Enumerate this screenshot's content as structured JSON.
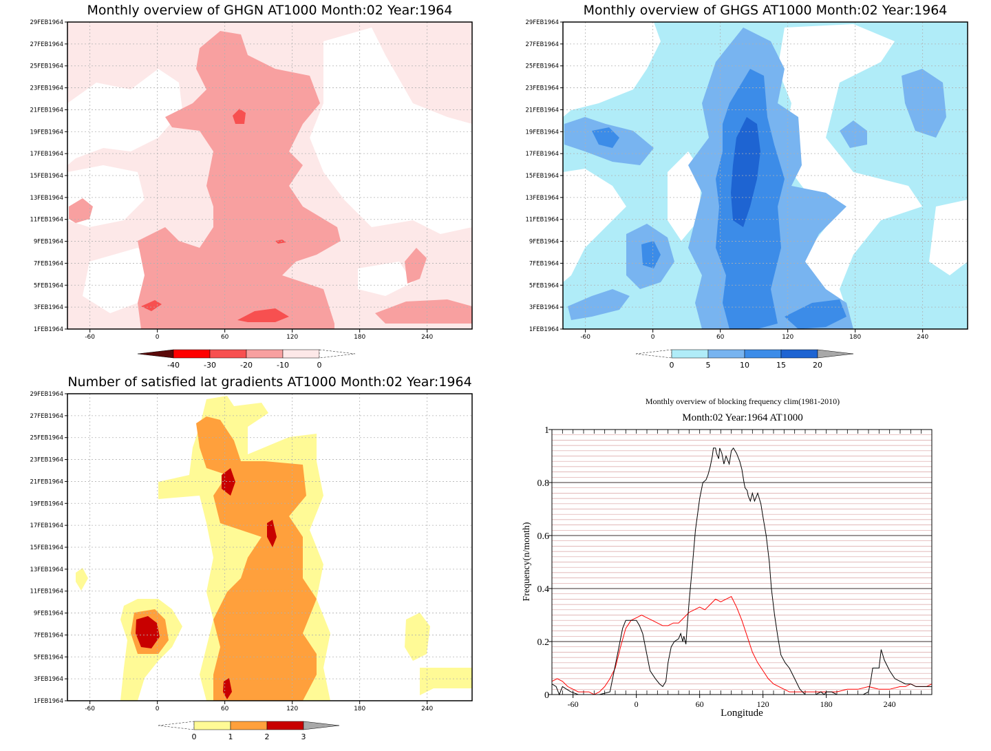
{
  "chart_data": [
    {
      "type": "heatmap",
      "title": "Monthly overview of GHGN AT1000 Month:02 Year:1964",
      "x_ticks": [
        "-60",
        "0",
        "60",
        "120",
        "180",
        "240"
      ],
      "x_tick_values": [
        -60,
        0,
        60,
        120,
        180,
        240
      ],
      "xlim": [
        -80,
        280
      ],
      "y_ticks": [
        "1FEB1964",
        "3FEB1964",
        "5FEB1964",
        "7FEB1964",
        "9FEB1964",
        "11FEB1964",
        "13FEB1964",
        "15FEB1964",
        "17FEB1964",
        "19FEB1964",
        "21FEB1964",
        "23FEB1964",
        "25FEB1964",
        "27FEB1964",
        "29FEB1964"
      ],
      "ylim": [
        1,
        29
      ],
      "colorbar": {
        "labels": [
          "-40",
          "-30",
          "-20",
          "-10",
          "0"
        ],
        "colors": [
          "#5a0a0a",
          "#ff0000",
          "#f75050",
          "#f8a0a0",
          "#fde8e8",
          "#ffffff"
        ]
      },
      "regions": [
        {
          "level": "0 to -10",
          "color": "#fde8e8",
          "lon": [
            -80,
            280
          ],
          "days": [
            1,
            29
          ]
        },
        {
          "level": "-10 to -20",
          "color": "#f8a0a0",
          "lon": [
            40,
            165
          ],
          "days": [
            1,
            29
          ]
        },
        {
          "level": "-20 to -30",
          "color": "#f75050",
          "lon": [
            70,
            120
          ],
          "days": [
            1,
            3
          ]
        }
      ]
    },
    {
      "type": "heatmap",
      "title": "Monthly overview of GHGS AT1000 Month:02 Year:1964",
      "x_ticks": [
        "-60",
        "0",
        "60",
        "120",
        "180",
        "240"
      ],
      "x_tick_values": [
        -60,
        0,
        60,
        120,
        180,
        240
      ],
      "xlim": [
        -80,
        280
      ],
      "y_ticks": [
        "1FEB1964",
        "3FEB1964",
        "5FEB1964",
        "7FEB1964",
        "9FEB1964",
        "11FEB1964",
        "13FEB1964",
        "15FEB1964",
        "17FEB1964",
        "19FEB1964",
        "21FEB1964",
        "23FEB1964",
        "25FEB1964",
        "27FEB1964",
        "29FEB1964"
      ],
      "ylim": [
        1,
        29
      ],
      "colorbar": {
        "labels": [
          "0",
          "5",
          "10",
          "15",
          "20"
        ],
        "colors": [
          "#ffffff",
          "#b0ecf8",
          "#78b4f0",
          "#3c8ce8",
          "#1e64d2",
          "#a8a8a8"
        ]
      },
      "regions": [
        {
          "level": "0 to 5",
          "color": "#b0ecf8",
          "lon": [
            -80,
            280
          ],
          "days": [
            1,
            29
          ]
        },
        {
          "level": "5 to 10",
          "color": "#78b4f0",
          "lon": [
            40,
            150
          ],
          "days": [
            1,
            27
          ]
        },
        {
          "level": "10 to 15",
          "color": "#3c8ce8",
          "lon": [
            60,
            120
          ],
          "days": [
            2,
            23
          ]
        }
      ]
    },
    {
      "type": "heatmap",
      "title": "Number of satisfied lat gradients AT1000 Month:02 Year:1964",
      "x_ticks": [
        "-60",
        "0",
        "60",
        "120",
        "180",
        "240"
      ],
      "x_tick_values": [
        -60,
        0,
        60,
        120,
        180,
        240
      ],
      "xlim": [
        -80,
        280
      ],
      "y_ticks": [
        "1FEB1964",
        "3FEB1964",
        "5FEB1964",
        "7FEB1964",
        "9FEB1964",
        "11FEB1964",
        "13FEB1964",
        "15FEB1964",
        "17FEB1964",
        "19FEB1964",
        "21FEB1964",
        "23FEB1964",
        "25FEB1964",
        "27FEB1964",
        "29FEB1964"
      ],
      "ylim": [
        1,
        29
      ],
      "colorbar": {
        "labels": [
          "0",
          "1",
          "2",
          "3"
        ],
        "colors": [
          "#ffffff",
          "#fffa96",
          "#ffa03c",
          "#c80000",
          "#a8a8a8"
        ]
      },
      "regions": [
        {
          "level": "1",
          "color": "#fffa96",
          "lon": [
            30,
            150
          ],
          "days": [
            1,
            29
          ]
        },
        {
          "level": "2",
          "color": "#ffa03c",
          "lon": [
            50,
            140
          ],
          "days": [
            1,
            27
          ]
        },
        {
          "level": "3",
          "color": "#c80000",
          "lon": [
            -20,
            0
          ],
          "days": [
            6,
            9
          ]
        }
      ]
    },
    {
      "type": "line",
      "title": "Monthly overview of blocking frequency clim(1981-2010)",
      "subtitle": "Month:02 Year:1964  AT1000",
      "xlabel": "Longitude",
      "ylabel": "Frequency(n/month)",
      "xlim": [
        -80,
        280
      ],
      "ylim": [
        0,
        1
      ],
      "x_ticks": [
        "-60",
        "0",
        "60",
        "120",
        "180",
        "240"
      ],
      "x_tick_values": [
        -60,
        0,
        60,
        120,
        180,
        240
      ],
      "y_ticks": [
        "0",
        "0.2",
        "0.4",
        "0.6",
        "0.8",
        "1"
      ],
      "y_tick_values": [
        0,
        0.2,
        0.4,
        0.6,
        0.8,
        1
      ],
      "series": [
        {
          "color": "#000000",
          "x": [
            -80,
            -76,
            -73,
            -70,
            -66,
            -62,
            -55,
            -45,
            -35,
            -25,
            -18,
            -13,
            -10,
            -6,
            -3,
            0,
            3,
            6,
            9,
            13,
            18,
            22,
            25,
            28,
            30,
            33,
            36,
            40,
            42,
            44,
            45,
            47,
            48,
            50,
            53,
            56,
            60,
            63,
            66,
            68,
            70,
            72,
            73,
            75,
            76,
            78,
            79,
            81,
            83,
            85,
            88,
            90,
            92,
            95,
            98,
            100,
            102,
            103,
            105,
            106,
            108,
            110,
            112,
            115,
            118,
            120,
            123,
            126,
            128,
            131,
            134,
            137,
            141,
            145,
            150,
            155,
            160,
            166,
            170,
            175,
            178,
            180,
            185,
            190,
            200,
            210,
            215,
            220,
            222,
            224,
            226,
            230,
            232,
            235,
            240,
            245,
            250,
            255,
            260,
            265,
            270,
            275,
            280
          ],
          "y": [
            0.04,
            0.03,
            0.0,
            0.03,
            0.02,
            0.01,
            0.0,
            0.0,
            0.0,
            0.01,
            0.15,
            0.25,
            0.28,
            0.28,
            0.28,
            0.28,
            0.26,
            0.23,
            0.17,
            0.09,
            0.06,
            0.04,
            0.03,
            0.05,
            0.12,
            0.18,
            0.2,
            0.21,
            0.23,
            0.2,
            0.22,
            0.19,
            0.25,
            0.35,
            0.48,
            0.62,
            0.74,
            0.8,
            0.81,
            0.83,
            0.86,
            0.9,
            0.93,
            0.93,
            0.91,
            0.89,
            0.93,
            0.91,
            0.87,
            0.9,
            0.87,
            0.92,
            0.93,
            0.91,
            0.88,
            0.85,
            0.8,
            0.78,
            0.77,
            0.75,
            0.73,
            0.76,
            0.73,
            0.76,
            0.72,
            0.67,
            0.6,
            0.5,
            0.4,
            0.3,
            0.22,
            0.15,
            0.12,
            0.1,
            0.06,
            0.02,
            0.0,
            0.0,
            0.0,
            0.01,
            0.0,
            0.01,
            0.01,
            0.0,
            0.0,
            0.0,
            0.0,
            0.01,
            0.05,
            0.1,
            0.1,
            0.1,
            0.17,
            0.13,
            0.09,
            0.06,
            0.05,
            0.04,
            0.04,
            0.03,
            0.03,
            0.03,
            0.03
          ]
        },
        {
          "color": "#ff0000",
          "x": [
            -80,
            -75,
            -70,
            -65,
            -60,
            -55,
            -45,
            -40,
            -35,
            -30,
            -25,
            -20,
            -15,
            -10,
            -5,
            0,
            5,
            10,
            15,
            20,
            25,
            30,
            35,
            40,
            45,
            50,
            55,
            60,
            65,
            70,
            75,
            80,
            85,
            90,
            95,
            100,
            105,
            110,
            115,
            120,
            125,
            130,
            135,
            140,
            145,
            150,
            155,
            160,
            170,
            180,
            190,
            200,
            210,
            220,
            230,
            240,
            250,
            255,
            260,
            265,
            270,
            275,
            280
          ],
          "y": [
            0.05,
            0.06,
            0.05,
            0.03,
            0.02,
            0.01,
            0.01,
            0.0,
            0.01,
            0.03,
            0.06,
            0.1,
            0.18,
            0.25,
            0.28,
            0.29,
            0.3,
            0.29,
            0.28,
            0.27,
            0.26,
            0.26,
            0.27,
            0.27,
            0.29,
            0.31,
            0.32,
            0.33,
            0.32,
            0.34,
            0.36,
            0.35,
            0.36,
            0.37,
            0.33,
            0.28,
            0.22,
            0.16,
            0.12,
            0.09,
            0.06,
            0.04,
            0.03,
            0.02,
            0.01,
            0.01,
            0.01,
            0.01,
            0.01,
            0.01,
            0.01,
            0.02,
            0.02,
            0.03,
            0.02,
            0.02,
            0.03,
            0.03,
            0.04,
            0.03,
            0.03,
            0.03,
            0.04
          ]
        }
      ]
    }
  ]
}
